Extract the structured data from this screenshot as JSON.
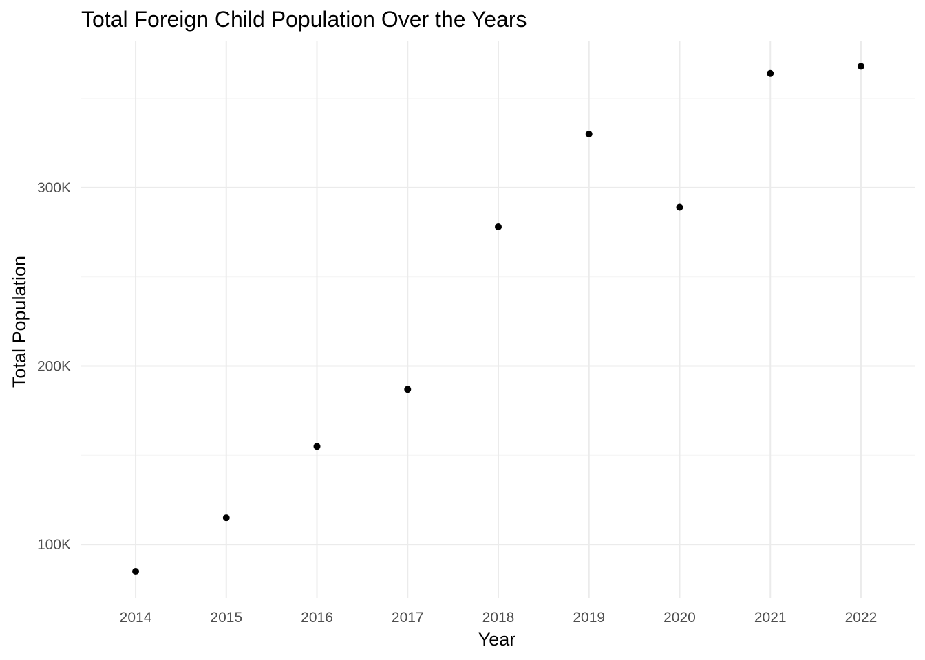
{
  "chart_data": {
    "type": "scatter",
    "title": "Total Foreign Child Population Over the Years",
    "xlabel": "Year",
    "ylabel": "Total Population",
    "x": [
      2014,
      2015,
      2016,
      2017,
      2018,
      2019,
      2020,
      2021,
      2022
    ],
    "y": [
      85000,
      115000,
      155000,
      187000,
      278000,
      330000,
      289000,
      364000,
      368000
    ],
    "x_ticks": [
      "2014",
      "2015",
      "2016",
      "2017",
      "2018",
      "2019",
      "2020",
      "2021",
      "2022"
    ],
    "y_ticks": [
      {
        "value": 100000,
        "label": "100K"
      },
      {
        "value": 200000,
        "label": "200K"
      },
      {
        "value": 300000,
        "label": "300K"
      }
    ],
    "y_minor_ticks": [
      150000,
      250000,
      350000
    ],
    "xlim": [
      2013.4,
      2022.6
    ],
    "ylim": [
      70000,
      382000
    ],
    "grid": true,
    "legend": "none",
    "colors": {
      "point": "#000000",
      "grid_major": "#ebebeb",
      "grid_minor": "#f4f4f4"
    }
  }
}
